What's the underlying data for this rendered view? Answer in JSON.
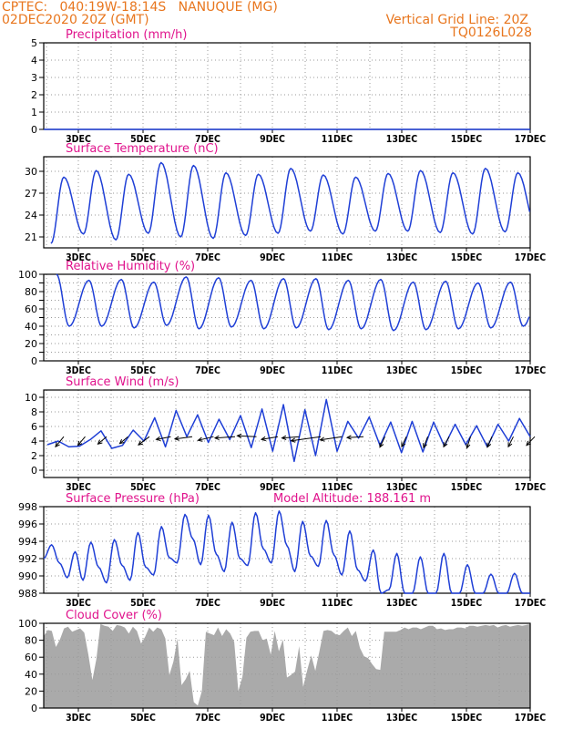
{
  "header": {
    "line1_left": "CPTEC:   040:19W-18:14S   NANUQUE (MG)",
    "line2_left": "02DEC2020 20Z (GMT)",
    "line1_right": "Vertical Grid Line: 20Z",
    "line2_right": "TQ0126L028"
  },
  "colors": {
    "header": "#e8761e",
    "title": "#e0138c",
    "series": "#1f3fd6",
    "cloud": "#aaaaaa",
    "arrow": "#000000"
  },
  "chart_data": [
    {
      "type": "line",
      "title": "Precipitation (mm/h)",
      "ylim": [
        0,
        5
      ],
      "yticks": [
        0,
        1,
        2,
        3,
        4,
        5
      ],
      "xticks": [
        "3DEC",
        "5DEC",
        "7DEC",
        "9DEC",
        "11DEC",
        "13DEC",
        "15DEC",
        "17DEC"
      ],
      "series": [
        {
          "values": [
            0,
            0,
            0,
            0,
            0,
            0,
            0,
            0,
            0,
            0,
            0,
            0,
            0,
            0,
            0,
            0
          ]
        }
      ]
    },
    {
      "type": "line",
      "title": "Surface Temperature (nC)",
      "ylim": [
        19.5,
        32
      ],
      "yticks": [
        21,
        24,
        27,
        30
      ],
      "xticks": [
        "3DEC",
        "5DEC",
        "7DEC",
        "9DEC",
        "11DEC",
        "13DEC",
        "15DEC",
        "17DEC"
      ],
      "series": [
        {
          "max": [
            29.2,
            30.1,
            29.6,
            31.2,
            30.8,
            29.8,
            29.6,
            30.4,
            29.5,
            29.2,
            29.7,
            30.1,
            29.8,
            30.4,
            29.8,
            29.2,
            29.6,
            29.5,
            29.4,
            30.2
          ],
          "min": [
            20.1,
            21.4,
            20.6,
            21.5,
            21.0,
            20.8,
            21.2,
            21.5,
            21.8,
            21.4,
            21.8,
            21.8,
            21.6,
            21.4,
            21.7,
            21.6,
            21.9,
            21.3,
            21.1
          ]
        }
      ]
    },
    {
      "type": "line",
      "title": "Relative Humidity (%)",
      "ylim": [
        0,
        100
      ],
      "yticks": [
        0,
        10,
        20,
        30,
        40,
        50,
        60,
        70,
        80,
        90,
        100
      ],
      "ytick_labels": [
        0,
        20,
        40,
        60,
        80,
        100
      ],
      "xticks": [
        "3DEC",
        "5DEC",
        "7DEC",
        "9DEC",
        "11DEC",
        "13DEC",
        "15DEC",
        "17DEC"
      ],
      "series": [
        {
          "max": [
            100,
            93,
            94,
            91,
            97,
            96,
            93,
            95,
            95,
            93,
            94,
            91,
            92,
            90,
            91,
            93,
            91,
            92,
            90
          ],
          "min": [
            40,
            40,
            38,
            41,
            37,
            39,
            37,
            38,
            36,
            37,
            35,
            36,
            37,
            38,
            40,
            39,
            38,
            38,
            38,
            40
          ]
        }
      ]
    },
    {
      "type": "line",
      "title": "Surface Wind (m/s)",
      "ylim": [
        -1,
        11
      ],
      "yticks": [
        0,
        2,
        4,
        6,
        8,
        10
      ],
      "xticks": [
        "3DEC",
        "5DEC",
        "7DEC",
        "9DEC",
        "11DEC",
        "13DEC",
        "15DEC",
        "17DEC"
      ],
      "series": [
        {
          "speed": [
            3.5,
            4.0,
            3.2,
            3.3,
            4.2,
            5.4,
            3.0,
            3.4,
            5.5,
            4.0,
            7.2,
            3.2,
            8.2,
            4.6,
            7.6,
            3.8,
            7.0,
            4.2,
            7.5,
            3.1,
            8.4,
            2.6,
            9.0,
            1.2,
            8.3,
            2.0,
            9.7,
            2.6,
            6.7,
            4.4,
            7.3,
            3.4,
            6.6,
            2.4,
            6.7,
            2.5,
            6.6,
            3.3,
            6.3,
            3.5,
            6.1,
            3.2,
            6.3,
            4.0,
            7.1,
            4.6
          ]
        }
      ],
      "wind_vectors": [
        {
          "u": 1.8,
          "v": 2.2
        },
        {
          "u": 1.6,
          "v": 1.9
        },
        {
          "u": 1.9,
          "v": 1.6
        },
        {
          "u": 1.8,
          "v": 1.5
        },
        {
          "u": 2.4,
          "v": 1.8
        },
        {
          "u": 3.2,
          "v": 0.6
        },
        {
          "u": 3.8,
          "v": 0.5
        },
        {
          "u": 3.4,
          "v": 0.8
        },
        {
          "u": 4.4,
          "v": 0.3
        },
        {
          "u": 4.2,
          "v": -0.2
        },
        {
          "u": 3.6,
          "v": 0.6
        },
        {
          "u": 3.8,
          "v": 0.3
        },
        {
          "u": 6.5,
          "v": 0.9
        },
        {
          "u": 4.8,
          "v": 0.7
        },
        {
          "u": 3.6,
          "v": 0.2
        },
        {
          "u": 1.1,
          "v": 2.3
        },
        {
          "u": 1.0,
          "v": 2.2
        },
        {
          "u": 0.9,
          "v": 2.4
        },
        {
          "u": 1.2,
          "v": 2.2
        },
        {
          "u": 0.8,
          "v": 2.5
        },
        {
          "u": 1.0,
          "v": 2.3
        },
        {
          "u": 1.1,
          "v": 2.2
        },
        {
          "u": 1.8,
          "v": 1.9
        }
      ]
    },
    {
      "type": "line",
      "title": "Surface Pressure (hPa)",
      "annotation": "Model Altitude: 188.161 m",
      "ylim": [
        988,
        998
      ],
      "yticks": [
        988,
        990,
        992,
        994,
        996,
        998
      ],
      "xticks": [
        "3DEC",
        "5DEC",
        "7DEC",
        "9DEC",
        "11DEC",
        "13DEC",
        "15DEC",
        "17DEC"
      ],
      "series": [
        {
          "values": [
            992.0,
            993.6,
            991.5,
            989.8,
            992.8,
            989.5,
            993.9,
            991.0,
            989.2,
            994.2,
            991.2,
            989.5,
            995.0,
            991.0,
            990.1,
            995.7,
            992.1,
            991.5,
            997.1,
            994.3,
            991.3,
            997.0,
            992.5,
            990.5,
            996.2,
            992.0,
            991.2,
            997.3,
            993.1,
            991.5,
            997.5,
            993.5,
            990.5,
            996.3,
            992.3,
            991.1,
            996.4,
            992.4,
            990.1,
            995.2,
            990.7,
            989.4,
            993.0,
            988.0,
            988.4,
            992.6,
            988.0,
            988.0,
            992.2,
            988.0,
            988.0,
            992.6,
            988.0,
            988.0,
            991.3,
            988.0,
            988.0,
            990.2,
            988.0,
            988.0,
            990.3,
            988.0,
            988.0
          ]
        }
      ]
    },
    {
      "type": "area",
      "title": "Cloud Cover (%)",
      "ylim": [
        0,
        100
      ],
      "yticks": [
        0,
        20,
        40,
        60,
        80,
        100
      ],
      "xticks": [
        "3DEC",
        "5DEC",
        "7DEC",
        "9DEC",
        "11DEC",
        "13DEC",
        "15DEC",
        "17DEC"
      ],
      "series": [
        {
          "values": [
            85,
            92,
            91,
            72,
            81,
            94,
            96,
            90,
            92,
            94,
            89,
            63,
            33,
            58,
            99,
            97,
            96,
            91,
            98,
            97,
            95,
            88,
            96,
            91,
            76,
            84,
            95,
            90,
            95,
            93,
            82,
            39,
            55,
            82,
            27,
            34,
            44,
            7,
            3,
            20,
            90,
            88,
            86,
            95,
            85,
            93,
            88,
            78,
            20,
            37,
            83,
            90,
            91,
            91,
            80,
            82,
            63,
            91,
            67,
            81,
            36,
            39,
            43,
            73,
            25,
            45,
            62,
            44,
            67,
            91,
            92,
            91,
            87,
            86,
            91,
            95,
            85,
            91,
            71,
            61,
            59,
            52,
            46,
            45,
            90,
            90,
            90,
            90,
            92,
            95,
            93,
            95,
            95,
            93,
            95,
            97,
            97,
            93,
            94,
            92,
            93,
            93,
            95,
            95,
            94,
            97,
            97,
            96,
            97,
            98,
            97,
            98,
            95,
            97,
            98,
            96,
            97,
            98,
            97,
            98,
            99
          ]
        }
      ]
    }
  ]
}
